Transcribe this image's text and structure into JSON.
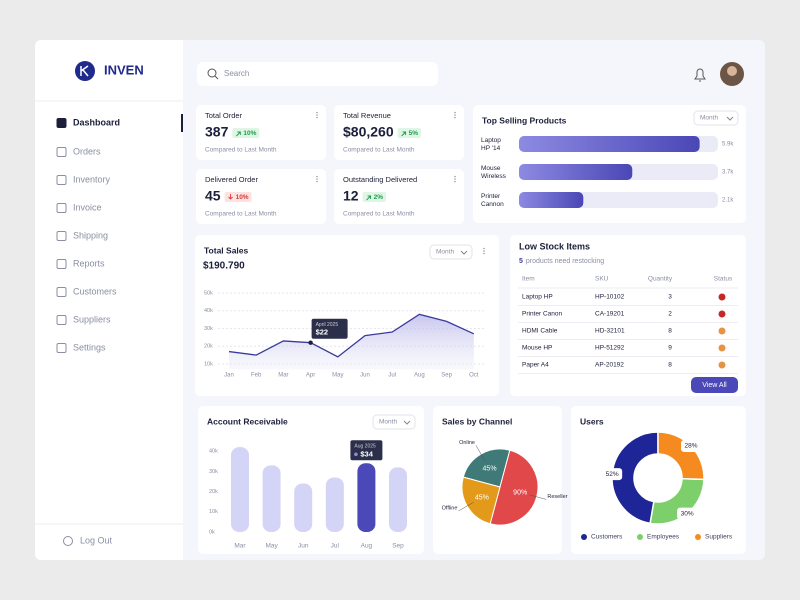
{
  "brand": "INVEN",
  "nav": [
    "Dashboard",
    "Orders",
    "Inventory",
    "Invoice",
    "Shipping",
    "Reports",
    "Customers",
    "Suppliers",
    "Settings"
  ],
  "logout": "Log Out",
  "search_placeholder": "Search",
  "stats": [
    {
      "title": "Total Order",
      "value": "387",
      "change": "10%",
      "trend": "up",
      "note": "Compared to Last Month"
    },
    {
      "title": "Total Revenue",
      "value": "$80,260",
      "change": "5%",
      "trend": "up",
      "note": "Compared to Last Month"
    },
    {
      "title": "Delivered Order",
      "value": "45",
      "change": "10%",
      "trend": "down",
      "note": "Compared to Last Month"
    },
    {
      "title": "Outstanding Delivered",
      "value": "12",
      "change": "2%",
      "trend": "up",
      "note": "Compared to Last Month"
    }
  ],
  "low_stock": {
    "title": "Low Stock Items",
    "count": "5",
    "subtitle": "products need restocking",
    "columns": [
      "Item",
      "SKU",
      "Quantity",
      "Status"
    ],
    "rows": [
      [
        "Laptop HP",
        "HP-10102",
        3
      ],
      [
        "Printer Canon",
        "CA-19201",
        2
      ],
      [
        "HDMI Cable",
        "HD-32101",
        8
      ],
      [
        "Mouse HP",
        "HP-51292",
        9
      ],
      [
        "Paper A4",
        "AP-20192",
        8
      ]
    ],
    "status_colors": [
      "#c62828",
      "#c62828",
      "#e39447",
      "#e39447",
      "#e39447"
    ],
    "button": "View All"
  },
  "chart_data": [
    {
      "type": "hbar",
      "title": "Top Selling Products",
      "filter": "Month",
      "categories": [
        "Laptop HP '14",
        "Mouse Wireless",
        "Printer Cannon"
      ],
      "values": [
        5900,
        3700,
        2100
      ],
      "value_labels": [
        "5.9k",
        "3.7k",
        "2.1k"
      ],
      "xlim": [
        0,
        6500
      ],
      "color": "#5552c4"
    },
    {
      "type": "line",
      "area": true,
      "title": "Total Sales",
      "subtitle": "$190.790",
      "filter": "Month",
      "categories": [
        "Jan",
        "Feb",
        "Mar",
        "Apr",
        "May",
        "Jun",
        "Jul",
        "Aug",
        "Sep",
        "Oct"
      ],
      "values": [
        17,
        15,
        23,
        22,
        14,
        26,
        28,
        38,
        34,
        27
      ],
      "ylim": [
        7,
        53
      ],
      "yticks": [
        {
          "value": 10,
          "label": "10k"
        },
        {
          "value": 20,
          "label": "20k"
        },
        {
          "value": 30,
          "label": "30k"
        },
        {
          "value": 40,
          "label": "40k"
        },
        {
          "value": 50,
          "label": "50k"
        }
      ],
      "grid": true,
      "color": "#3b3b9c",
      "tooltip": {
        "index": 3,
        "title": "April 2025",
        "label": "$22"
      }
    },
    {
      "type": "bar",
      "title": "Account Receivable",
      "filter": "Month",
      "categories": [
        "Mar",
        "May",
        "Jun",
        "Jul",
        "Aug",
        "Sep"
      ],
      "values": [
        42,
        33,
        24,
        27,
        34,
        32
      ],
      "ylim": [
        0,
        44
      ],
      "yticks": [
        {
          "value": 0,
          "label": "0k"
        },
        {
          "value": 10,
          "label": "10k"
        },
        {
          "value": 20,
          "label": "20k"
        },
        {
          "value": 30,
          "label": "30k"
        },
        {
          "value": 40,
          "label": "40k"
        }
      ],
      "color": "#d4d4f7",
      "highlight_color": "#4b48b8",
      "tooltip": {
        "index": 4,
        "title": "Aug 2025",
        "label": "$34"
      }
    },
    {
      "type": "pie",
      "title": "Sales by Channel",
      "categories": [
        "Online",
        "Reseller",
        "Offline"
      ],
      "values": [
        45,
        90,
        45
      ],
      "value_labels": [
        "45%",
        "90%",
        "45%"
      ],
      "colors": [
        "#3f7a78",
        "#e0484a",
        "#e39a1a"
      ]
    },
    {
      "type": "donut",
      "title": "Users",
      "categories": [
        "Customers",
        "Employees",
        "Suppliers"
      ],
      "values": [
        52,
        30,
        28
      ],
      "value_labels": [
        "52%",
        "30%",
        "28%"
      ],
      "colors": [
        "#1e2596",
        "#7ccf6b",
        "#f58b1f"
      ],
      "legend": "bottom"
    }
  ]
}
